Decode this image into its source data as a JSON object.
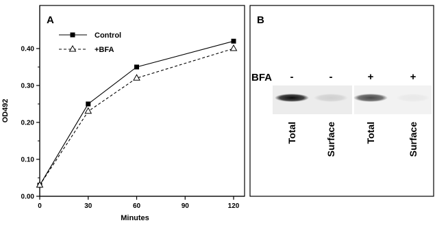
{
  "chart_data": {
    "type": "line",
    "panel_label": "A",
    "x": [
      0,
      30,
      60,
      120
    ],
    "xticks": [
      "0",
      "30",
      "60",
      "90",
      "120"
    ],
    "xtick_values": [
      0,
      30,
      60,
      90,
      120
    ],
    "yticks": [
      "0.00",
      "0.10",
      "0.20",
      "0.30",
      "0.40"
    ],
    "ytick_values": [
      0.0,
      0.1,
      0.2,
      0.3,
      0.4
    ],
    "xlim": [
      0,
      120
    ],
    "ylim": [
      0,
      0.45
    ],
    "xlabel": "Minutes",
    "ylabel": "OD492",
    "grid": false,
    "legend_position": "top-left",
    "series": [
      {
        "name": "Control",
        "values": [
          0.03,
          0.25,
          0.35,
          0.42
        ],
        "marker": "filled-square",
        "line": "solid",
        "color": "#000000"
      },
      {
        "name": "+BFA",
        "values": [
          0.03,
          0.23,
          0.32,
          0.4
        ],
        "marker": "open-triangle",
        "line": "dashed",
        "color": "#000000"
      }
    ]
  },
  "blot": {
    "panel_label": "B",
    "row_label": "BFA",
    "lanes": [
      {
        "sign": "-",
        "label": "Total",
        "intensity": 0.95
      },
      {
        "sign": "-",
        "label": "Surface",
        "intensity": 0.12
      },
      {
        "sign": "+",
        "label": "Total",
        "intensity": 0.7
      },
      {
        "sign": "+",
        "label": "Surface",
        "intensity": 0.04
      }
    ]
  }
}
